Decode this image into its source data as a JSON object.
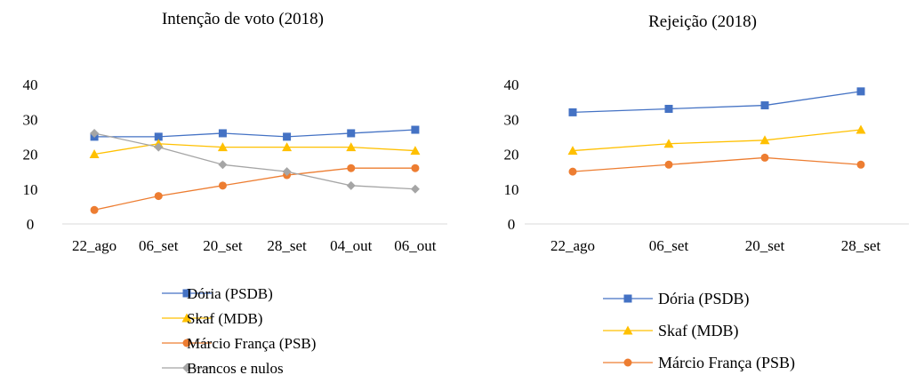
{
  "chart_data": [
    {
      "type": "line",
      "title": "Intenção de voto (2018)",
      "xlabel": "",
      "ylabel": "",
      "ylim": [
        0,
        40
      ],
      "yticks": [
        0,
        10,
        20,
        30,
        40
      ],
      "grid": false,
      "legend_position": "bottom",
      "categories": [
        "22_ago",
        "06_set",
        "20_set",
        "28_set",
        "04_out",
        "06_out"
      ],
      "series": [
        {
          "name": "Dória (PSDB)",
          "color": "#4472C4",
          "marker": "square",
          "values": [
            25,
            25,
            26,
            25,
            26,
            27
          ]
        },
        {
          "name": "Skaf (MDB)",
          "color": "#FFC000",
          "marker": "triangle",
          "values": [
            20,
            23,
            22,
            22,
            22,
            21
          ]
        },
        {
          "name": "Márcio França (PSB)",
          "color": "#ED7D31",
          "marker": "circle",
          "values": [
            4,
            8,
            11,
            14,
            16,
            16
          ]
        },
        {
          "name": "Brancos e nulos",
          "color": "#A5A5A5",
          "marker": "diamond",
          "values": [
            26,
            22,
            17,
            15,
            11,
            10
          ]
        }
      ]
    },
    {
      "type": "line",
      "title": "Rejeição (2018)",
      "xlabel": "",
      "ylabel": "",
      "ylim": [
        0,
        40
      ],
      "yticks": [
        0,
        10,
        20,
        30,
        40
      ],
      "grid": false,
      "legend_position": "bottom",
      "categories": [
        "22_ago",
        "06_set",
        "20_set",
        "28_set"
      ],
      "series": [
        {
          "name": "Dória (PSDB)",
          "color": "#4472C4",
          "marker": "square",
          "values": [
            32,
            33,
            34,
            38
          ]
        },
        {
          "name": "Skaf (MDB)",
          "color": "#FFC000",
          "marker": "triangle",
          "values": [
            21,
            23,
            24,
            27
          ]
        },
        {
          "name": "Márcio França (PSB)",
          "color": "#ED7D31",
          "marker": "circle",
          "values": [
            15,
            17,
            19,
            17
          ]
        }
      ]
    }
  ]
}
